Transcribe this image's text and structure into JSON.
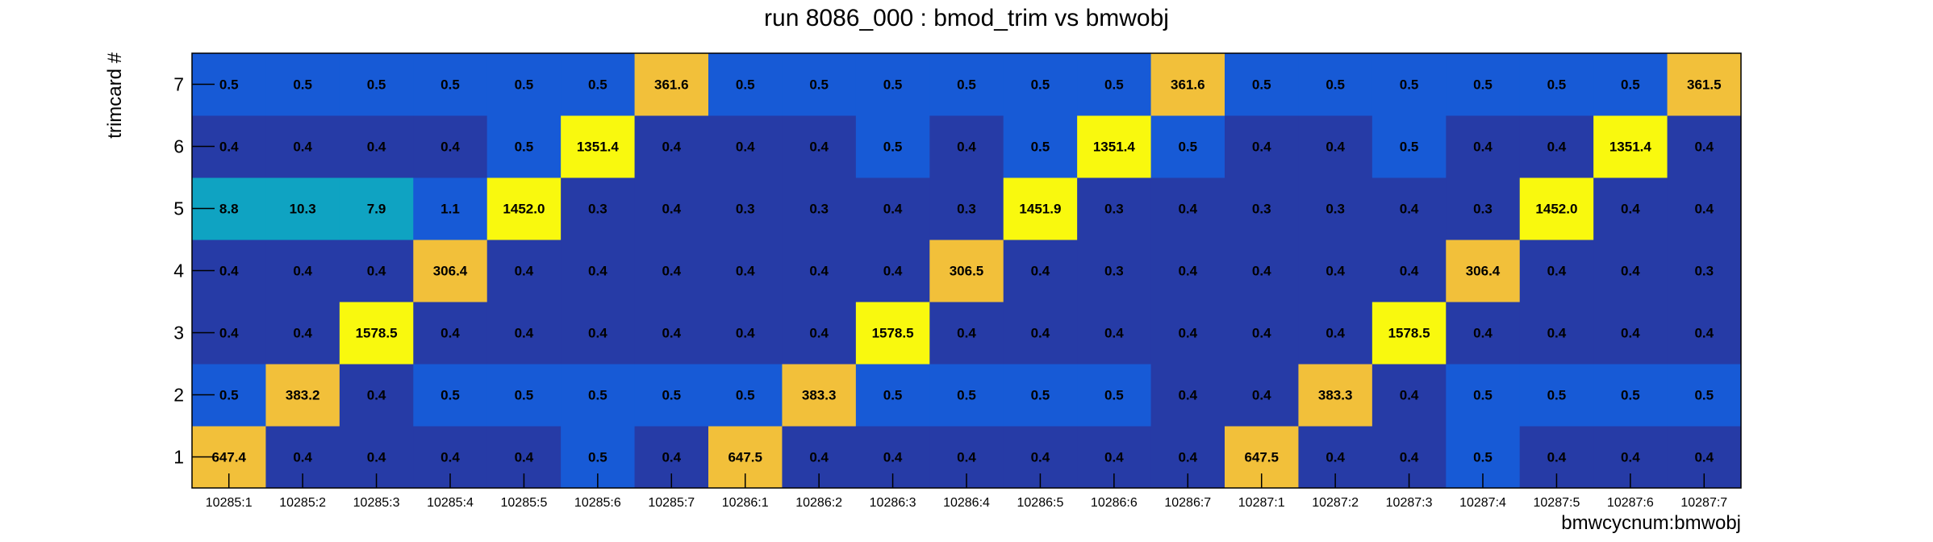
{
  "chart_data": {
    "type": "heatmap",
    "title": "run 8086_000 : bmod_trim vs bmwobj",
    "xlabel": "bmwcycnum:bmwobj",
    "ylabel": "trimcard #",
    "x_categories": [
      "10285:1",
      "10285:2",
      "10285:3",
      "10285:4",
      "10285:5",
      "10285:6",
      "10285:7",
      "10286:1",
      "10286:2",
      "10286:3",
      "10286:4",
      "10286:5",
      "10286:6",
      "10286:7",
      "10287:1",
      "10287:2",
      "10287:3",
      "10287:4",
      "10287:5",
      "10287:6",
      "10287:7"
    ],
    "y_categories": [
      "1",
      "2",
      "3",
      "4",
      "5",
      "6",
      "7"
    ],
    "values": [
      [
        647.4,
        0.4,
        0.4,
        0.4,
        0.4,
        0.5,
        0.4,
        647.5,
        0.4,
        0.4,
        0.4,
        0.4,
        0.4,
        0.4,
        647.5,
        0.4,
        0.4,
        0.5,
        0.4,
        0.4,
        0.4
      ],
      [
        0.5,
        383.2,
        0.4,
        0.5,
        0.5,
        0.5,
        0.5,
        0.5,
        383.3,
        0.5,
        0.5,
        0.5,
        0.5,
        0.4,
        0.4,
        383.3,
        0.4,
        0.5,
        0.5,
        0.5,
        0.5
      ],
      [
        0.4,
        0.4,
        1578.5,
        0.4,
        0.4,
        0.4,
        0.4,
        0.4,
        0.4,
        1578.5,
        0.4,
        0.4,
        0.4,
        0.4,
        0.4,
        0.4,
        1578.5,
        0.4,
        0.4,
        0.4,
        0.4
      ],
      [
        0.4,
        0.4,
        0.4,
        306.4,
        0.4,
        0.4,
        0.4,
        0.4,
        0.4,
        0.4,
        306.5,
        0.4,
        0.3,
        0.4,
        0.4,
        0.4,
        0.4,
        306.4,
        0.4,
        0.4,
        0.3
      ],
      [
        8.8,
        10.3,
        7.9,
        1.1,
        1452.0,
        0.3,
        0.4,
        0.3,
        0.3,
        0.4,
        0.3,
        1451.9,
        0.3,
        0.4,
        0.3,
        0.3,
        0.4,
        0.3,
        1452.0,
        0.4,
        0.4
      ],
      [
        0.4,
        0.4,
        0.4,
        0.4,
        0.5,
        1351.4,
        0.4,
        0.4,
        0.4,
        0.5,
        0.4,
        0.5,
        1351.4,
        0.5,
        0.4,
        0.4,
        0.5,
        0.4,
        0.4,
        1351.4,
        0.4
      ],
      [
        0.5,
        0.5,
        0.5,
        0.5,
        0.5,
        0.5,
        361.6,
        0.5,
        0.5,
        0.5,
        0.5,
        0.5,
        0.5,
        361.6,
        0.5,
        0.5,
        0.5,
        0.5,
        0.5,
        0.5,
        361.5
      ]
    ],
    "labels": [
      [
        "647.4",
        "0.4",
        "0.4",
        "0.4",
        "0.4",
        "0.5",
        "0.4",
        "647.5",
        "0.4",
        "0.4",
        "0.4",
        "0.4",
        "0.4",
        "0.4",
        "647.5",
        "0.4",
        "0.4",
        "0.5",
        "0.4",
        "0.4",
        "0.4"
      ],
      [
        "0.5",
        "383.2",
        "0.4",
        "0.5",
        "0.5",
        "0.5",
        "0.5",
        "0.5",
        "383.3",
        "0.5",
        "0.5",
        "0.5",
        "0.5",
        "0.4",
        "0.4",
        "383.3",
        "0.4",
        "0.5",
        "0.5",
        "0.5",
        "0.5"
      ],
      [
        "0.4",
        "0.4",
        "1578.5",
        "0.4",
        "0.4",
        "0.4",
        "0.4",
        "0.4",
        "0.4",
        "1578.5",
        "0.4",
        "0.4",
        "0.4",
        "0.4",
        "0.4",
        "0.4",
        "1578.5",
        "0.4",
        "0.4",
        "0.4",
        "0.4"
      ],
      [
        "0.4",
        "0.4",
        "0.4",
        "306.4",
        "0.4",
        "0.4",
        "0.4",
        "0.4",
        "0.4",
        "0.4",
        "306.5",
        "0.4",
        "0.3",
        "0.4",
        "0.4",
        "0.4",
        "0.4",
        "306.4",
        "0.4",
        "0.4",
        "0.3"
      ],
      [
        "8.8",
        "10.3",
        "7.9",
        "1.1",
        "1452.0",
        "0.3",
        "0.4",
        "0.3",
        "0.3",
        "0.4",
        "0.3",
        "1451.9",
        "0.3",
        "0.4",
        "0.3",
        "0.3",
        "0.4",
        "0.3",
        "1452.0",
        "0.4",
        "0.4"
      ],
      [
        "0.4",
        "0.4",
        "0.4",
        "0.4",
        "0.5",
        "1351.4",
        "0.4",
        "0.4",
        "0.4",
        "0.5",
        "0.4",
        "0.5",
        "1351.4",
        "0.5",
        "0.4",
        "0.4",
        "0.5",
        "0.4",
        "0.4",
        "1351.4",
        "0.4"
      ],
      [
        "0.5",
        "0.5",
        "0.5",
        "0.5",
        "0.5",
        "0.5",
        "361.6",
        "0.5",
        "0.5",
        "0.5",
        "0.5",
        "0.5",
        "0.5",
        "361.6",
        "0.5",
        "0.5",
        "0.5",
        "0.5",
        "0.5",
        "0.5",
        "361.5"
      ]
    ],
    "colors": {
      "low": "#263ba6",
      "mid_low": "#175ad6",
      "teal": "#0fa3c2",
      "orange": "#f2c03a",
      "yellow": "#f9f90e",
      "frame": "#000000"
    }
  }
}
